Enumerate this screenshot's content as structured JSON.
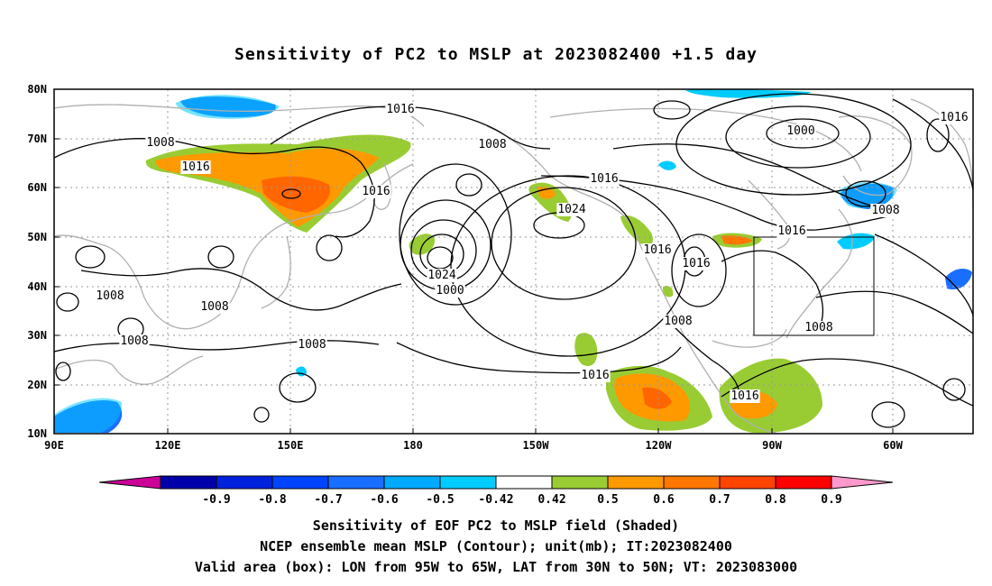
{
  "title": "Sensitivity of PC2 to MSLP at 2023082400 +1.5 day",
  "map": {
    "lat_labels": [
      "80N",
      "70N",
      "60N",
      "50N",
      "40N",
      "30N",
      "20N",
      "10N"
    ],
    "lon_labels": [
      "90E",
      "120E",
      "150E",
      "180",
      "150W",
      "120W",
      "90W",
      "60W"
    ],
    "valid_box": {
      "lon": [
        "95W",
        "65W"
      ],
      "lat": [
        "30N",
        "50N"
      ]
    },
    "contour_labels": [
      "1016",
      "1008",
      "1016",
      "1016",
      "1008",
      "1016",
      "1024",
      "1016",
      "1000",
      "1016",
      "1008",
      "1016",
      "1016",
      "1024",
      "1000",
      "1008",
      "1008",
      "1008",
      "1008",
      "1008",
      "1008",
      "1016",
      "1016",
      "1016"
    ],
    "colors": {
      "coast": "#b0b0b0",
      "contour": "#000000",
      "green": "#99cc33",
      "orange": "#ff9900",
      "deep_orange": "#ff6600",
      "blue": "#2288ff",
      "cyan": "#00ccff"
    }
  },
  "colorbar": {
    "ticks": [
      "-0.9",
      "-0.8",
      "-0.7",
      "-0.6",
      "-0.5",
      "-0.42",
      "0.42",
      "0.5",
      "0.6",
      "0.7",
      "0.8",
      "0.9"
    ],
    "colors": [
      "#cc0099",
      "#0000aa",
      "#0022dd",
      "#0044ff",
      "#1a6eff",
      "#00aaff",
      "#00ccff",
      "#ffffff",
      "#99cc33",
      "#ff9900",
      "#ff7700",
      "#ff4400",
      "#ff0000",
      "#ff99cc"
    ]
  },
  "caption": {
    "line1": "Sensitivity of EOF PC2 to MSLP field (Shaded)",
    "line2": "NCEP ensemble mean MSLP (Contour); unit(mb); IT:2023082400",
    "line3": "Valid area (box): LON from 95W to 65W, LAT from 30N to 50N; VT: 2023083000"
  }
}
